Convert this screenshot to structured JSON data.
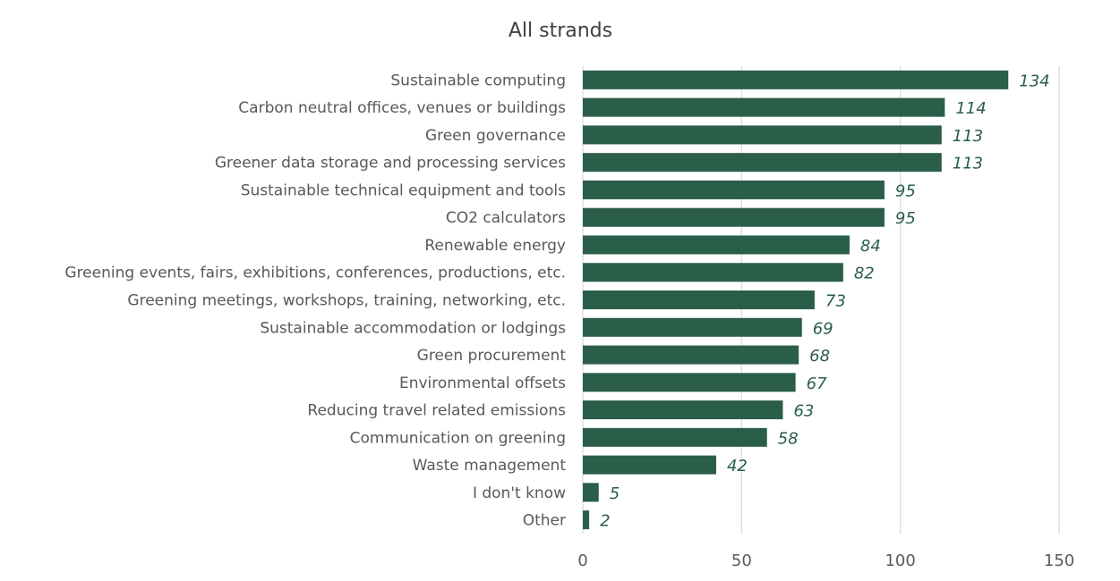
{
  "chart_data": {
    "type": "bar",
    "orientation": "horizontal",
    "title": "All strands",
    "xlabel": "",
    "ylabel": "",
    "xlim": [
      0,
      150
    ],
    "xticks": [
      0,
      50,
      100,
      150
    ],
    "grid": true,
    "bar_color": "#2a5e48",
    "label_color": "#2a5e48",
    "categories": [
      "Sustainable computing",
      "Carbon neutral offices, venues or buildings",
      "Green governance",
      "Greener data storage and processing services",
      "Sustainable technical equipment and tools",
      "CO2 calculators",
      "Renewable energy",
      "Greening events, fairs, exhibitions, conferences, productions, etc.",
      "Greening meetings, workshops, training, networking, etc.",
      "Sustainable accommodation or lodgings",
      "Green procurement",
      "Environmental offsets",
      "Reducing travel related emissions",
      "Communication on greening",
      "Waste management",
      "I don't know",
      "Other"
    ],
    "values": [
      134,
      114,
      113,
      113,
      95,
      95,
      84,
      82,
      73,
      69,
      68,
      67,
      63,
      58,
      42,
      5,
      2
    ]
  }
}
